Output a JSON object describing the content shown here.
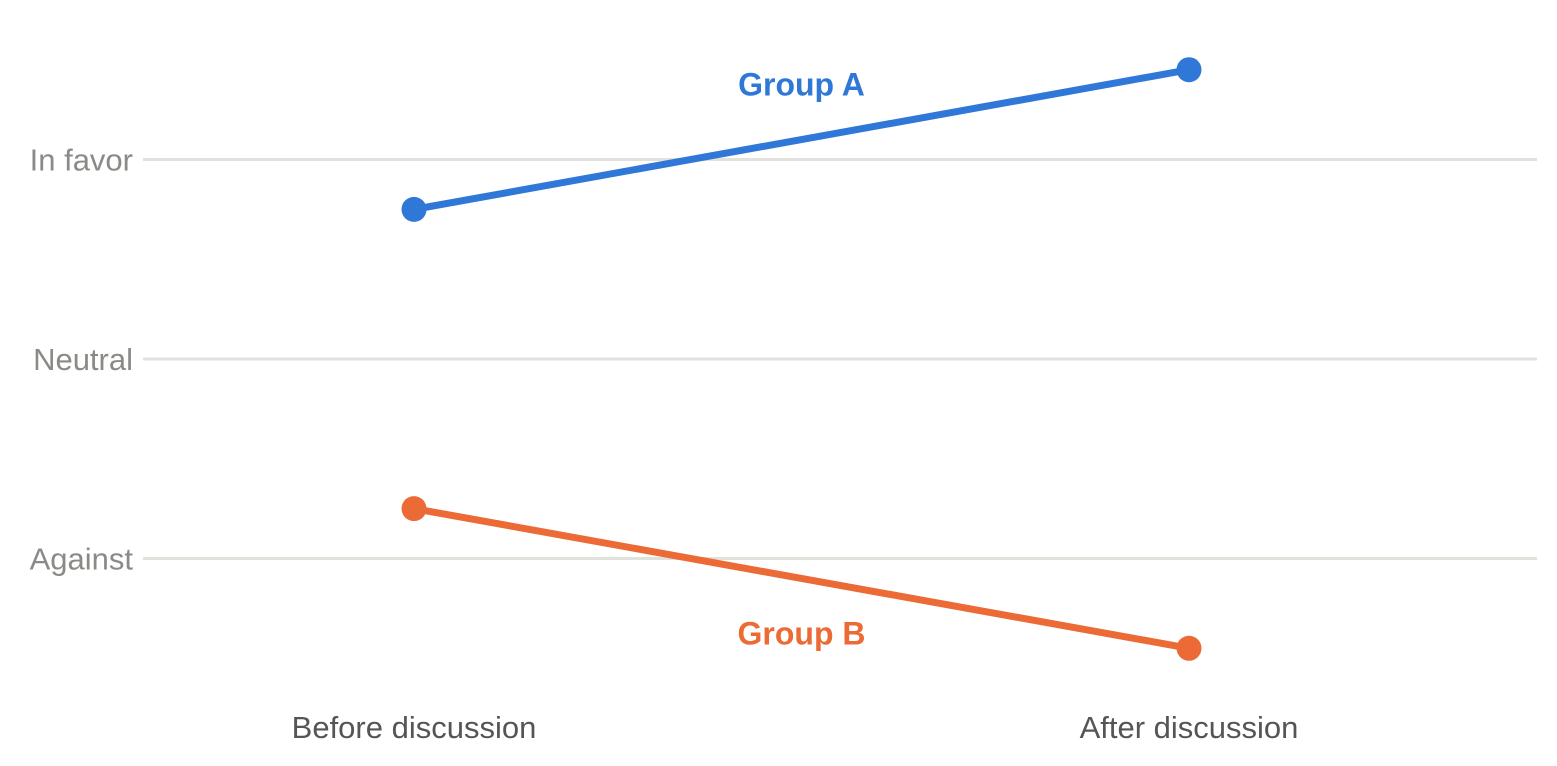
{
  "chart_data": {
    "type": "line",
    "categories": [
      "Before discussion",
      "After discussion"
    ],
    "y_levels": [
      "Against",
      "Neutral",
      "In favor"
    ],
    "ylim": [
      -1.5,
      1.5
    ],
    "grid": true,
    "series": [
      {
        "name": "Group A",
        "values": [
          0.75,
          1.45
        ],
        "color": "#2f78d7"
      },
      {
        "name": "Group B",
        "values": [
          -0.75,
          -1.45
        ],
        "color": "#ec6a35"
      }
    ]
  }
}
